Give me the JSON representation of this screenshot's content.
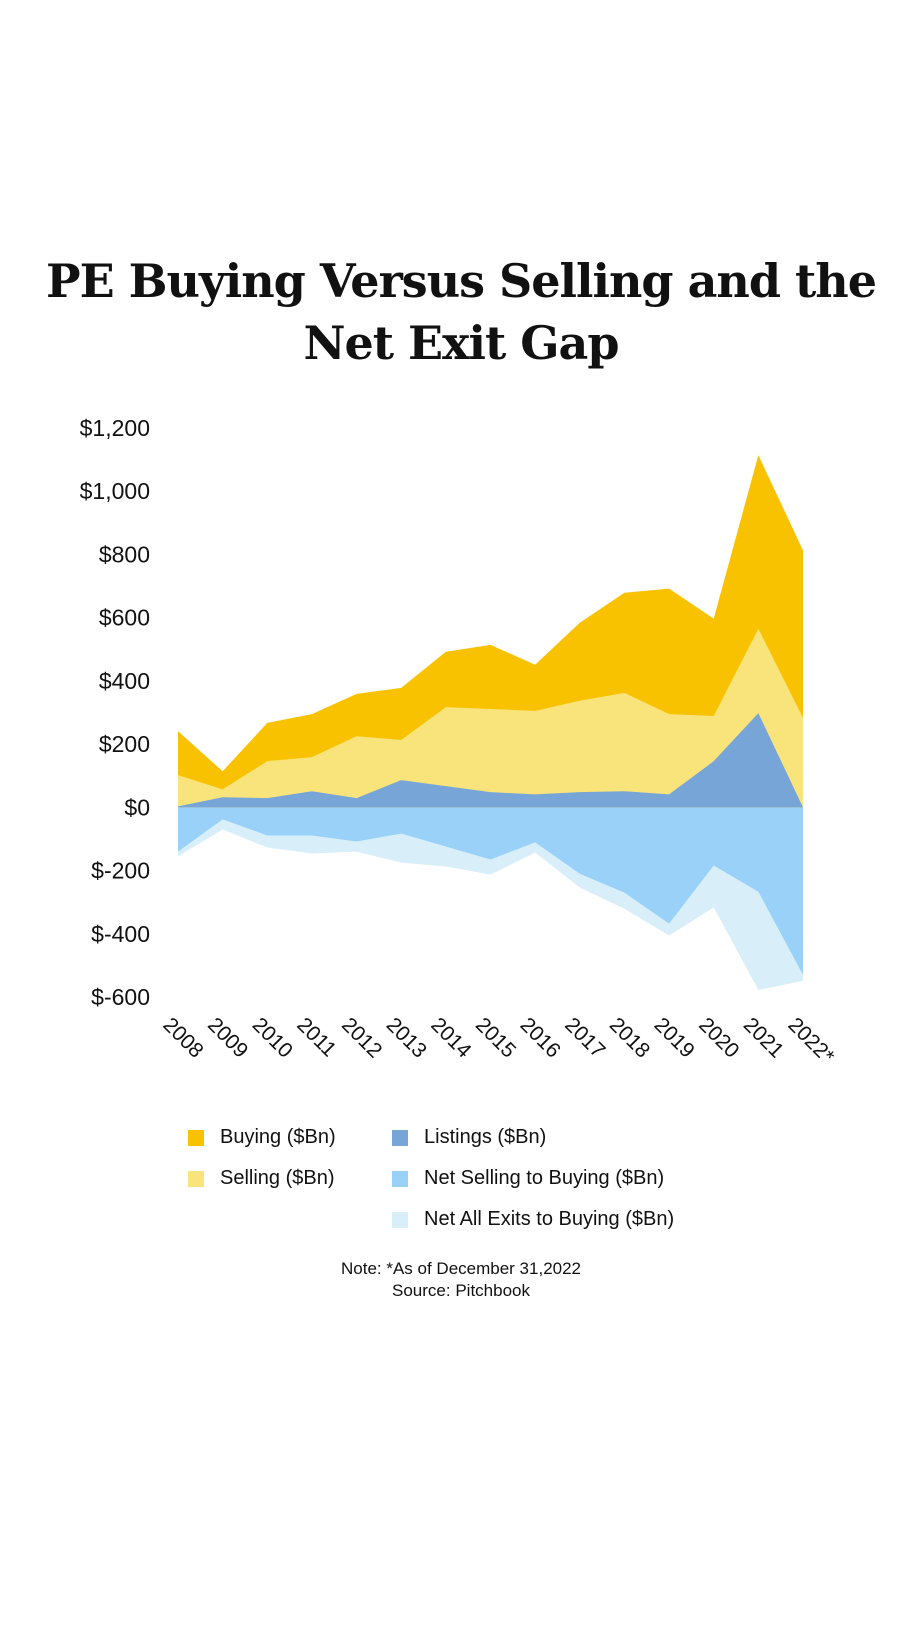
{
  "chart_data": {
    "type": "area",
    "title": "PE Buying Versus Selling and the Net Exit Gap",
    "xlabel": "",
    "ylabel": "",
    "x": [
      "2008",
      "2009",
      "2010",
      "2011",
      "2012",
      "2013",
      "2014",
      "2015",
      "2016",
      "2017",
      "2018",
      "2019",
      "2020",
      "2021",
      "2022*"
    ],
    "ylim": [
      -600,
      1200
    ],
    "yticks": [
      1200,
      1000,
      800,
      600,
      400,
      200,
      0,
      -200,
      -400,
      -600
    ],
    "ytick_labels": [
      "$1,200",
      "$1,000",
      "$800",
      "$600",
      "$400",
      "$200",
      "$0",
      "$-200",
      "$-400",
      "$-600"
    ],
    "grid": false,
    "legend_position": "bottom",
    "series": [
      {
        "name": "Buying ($Bn)",
        "color": "#F9C200",
        "values": [
          241,
          114,
          267,
          295,
          359,
          378,
          492,
          514,
          451,
          584,
          679,
          692,
          597,
          1114,
          813
        ]
      },
      {
        "name": "Selling ($Bn)",
        "color": "#F8E47A",
        "values": [
          102,
          57,
          146,
          159,
          225,
          213,
          317,
          311,
          305,
          337,
          362,
          295,
          289,
          565,
          283
        ]
      },
      {
        "name": "Listings ($Bn)",
        "color": "#77A5D8",
        "values": [
          3,
          32,
          29,
          51,
          29,
          86,
          67,
          48,
          41,
          48,
          51,
          41,
          146,
          298,
          0
        ]
      },
      {
        "name": "Net Selling to Buying ($Bn)",
        "color": "#99D1F8",
        "values": [
          -140,
          -38,
          -89,
          -89,
          -108,
          -83,
          -124,
          -165,
          -111,
          -210,
          -270,
          -368,
          -184,
          -267,
          -530
        ]
      },
      {
        "name": "Net All Exits to Buying ($Bn)",
        "color": "#D8EFFA",
        "values": [
          -155,
          -70,
          -127,
          -146,
          -140,
          -175,
          -187,
          -213,
          -143,
          -254,
          -321,
          -406,
          -317,
          -578,
          -549
        ]
      }
    ]
  },
  "note": {
    "line1": "Note: *As of December 31,2022",
    "line2": "Source: Pitchbook"
  }
}
